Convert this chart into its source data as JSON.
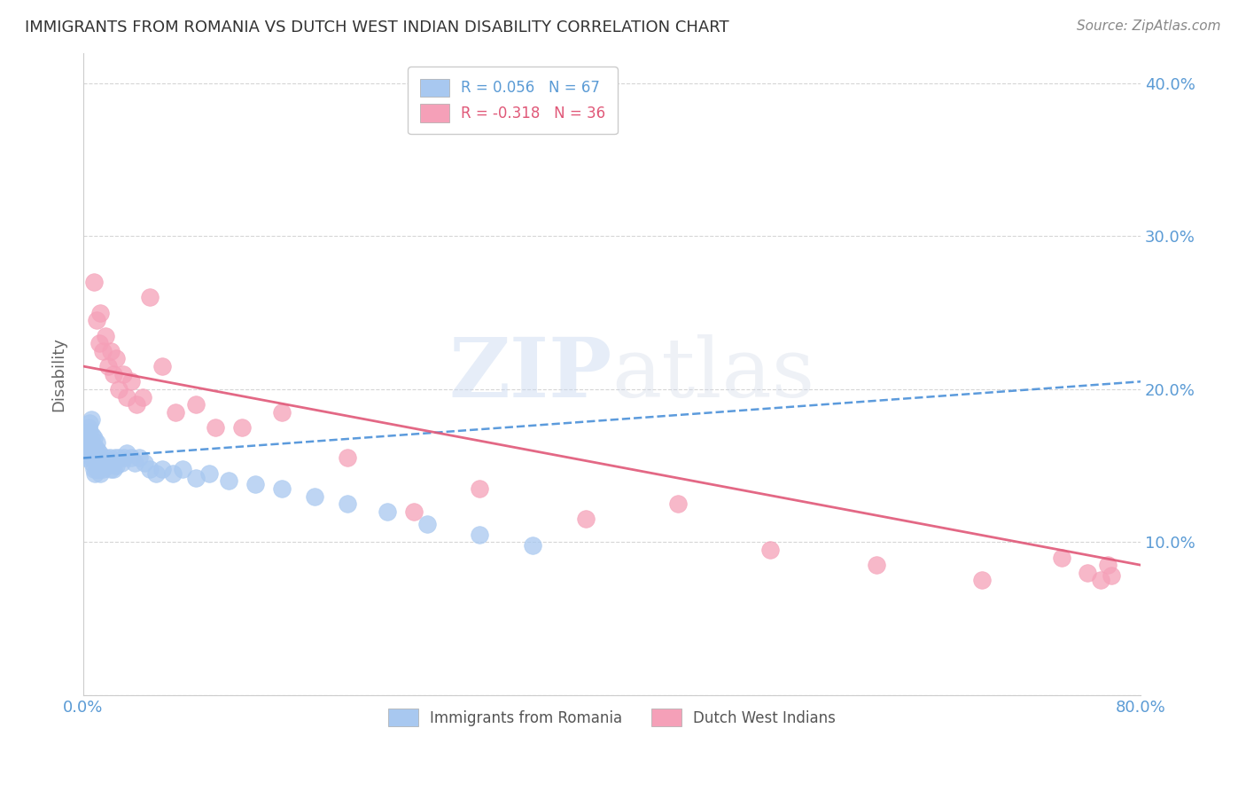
{
  "title": "IMMIGRANTS FROM ROMANIA VS DUTCH WEST INDIAN DISABILITY CORRELATION CHART",
  "source": "Source: ZipAtlas.com",
  "ylabel": "Disability",
  "watermark_zip": "ZIP",
  "watermark_atlas": "atlas",
  "xlim": [
    0.0,
    0.8
  ],
  "ylim": [
    0.0,
    0.42
  ],
  "x_ticks": [
    0.0,
    0.2,
    0.4,
    0.6,
    0.8
  ],
  "y_ticks": [
    0.0,
    0.1,
    0.2,
    0.3,
    0.4
  ],
  "y_tick_labels_right": [
    "",
    "10.0%",
    "20.0%",
    "30.0%",
    "40.0%"
  ],
  "romania_color": "#a8c8f0",
  "dutch_color": "#f5a0b8",
  "romania_line_color": "#4a90d9",
  "dutch_line_color": "#e05878",
  "romania_x": [
    0.002,
    0.003,
    0.003,
    0.004,
    0.004,
    0.004,
    0.005,
    0.005,
    0.005,
    0.005,
    0.006,
    0.006,
    0.006,
    0.007,
    0.007,
    0.007,
    0.008,
    0.008,
    0.008,
    0.009,
    0.009,
    0.009,
    0.01,
    0.01,
    0.01,
    0.011,
    0.011,
    0.012,
    0.012,
    0.013,
    0.013,
    0.014,
    0.015,
    0.016,
    0.017,
    0.018,
    0.019,
    0.02,
    0.021,
    0.022,
    0.023,
    0.024,
    0.025,
    0.027,
    0.029,
    0.031,
    0.033,
    0.036,
    0.039,
    0.042,
    0.046,
    0.05,
    0.055,
    0.06,
    0.068,
    0.075,
    0.085,
    0.095,
    0.11,
    0.13,
    0.15,
    0.175,
    0.2,
    0.23,
    0.26,
    0.3,
    0.34
  ],
  "romania_y": [
    0.155,
    0.17,
    0.162,
    0.175,
    0.168,
    0.16,
    0.178,
    0.165,
    0.158,
    0.172,
    0.18,
    0.165,
    0.155,
    0.17,
    0.16,
    0.152,
    0.168,
    0.158,
    0.148,
    0.162,
    0.155,
    0.145,
    0.165,
    0.155,
    0.148,
    0.16,
    0.15,
    0.158,
    0.148,
    0.155,
    0.145,
    0.15,
    0.148,
    0.152,
    0.155,
    0.15,
    0.152,
    0.155,
    0.148,
    0.152,
    0.148,
    0.155,
    0.15,
    0.155,
    0.152,
    0.155,
    0.158,
    0.155,
    0.152,
    0.155,
    0.152,
    0.148,
    0.145,
    0.148,
    0.145,
    0.148,
    0.142,
    0.145,
    0.14,
    0.138,
    0.135,
    0.13,
    0.125,
    0.12,
    0.112,
    0.105,
    0.098
  ],
  "dutch_x": [
    0.008,
    0.01,
    0.012,
    0.013,
    0.015,
    0.017,
    0.019,
    0.021,
    0.023,
    0.025,
    0.027,
    0.03,
    0.033,
    0.036,
    0.04,
    0.045,
    0.05,
    0.06,
    0.07,
    0.085,
    0.1,
    0.12,
    0.15,
    0.2,
    0.25,
    0.3,
    0.38,
    0.45,
    0.52,
    0.6,
    0.68,
    0.74,
    0.76,
    0.77,
    0.775,
    0.778
  ],
  "dutch_y": [
    0.27,
    0.245,
    0.23,
    0.25,
    0.225,
    0.235,
    0.215,
    0.225,
    0.21,
    0.22,
    0.2,
    0.21,
    0.195,
    0.205,
    0.19,
    0.195,
    0.26,
    0.215,
    0.185,
    0.19,
    0.175,
    0.175,
    0.185,
    0.155,
    0.12,
    0.135,
    0.115,
    0.125,
    0.095,
    0.085,
    0.075,
    0.09,
    0.08,
    0.075,
    0.085,
    0.078
  ],
  "background_color": "#ffffff",
  "grid_color": "#cccccc",
  "tick_color": "#5b9bd5",
  "title_color": "#333333"
}
